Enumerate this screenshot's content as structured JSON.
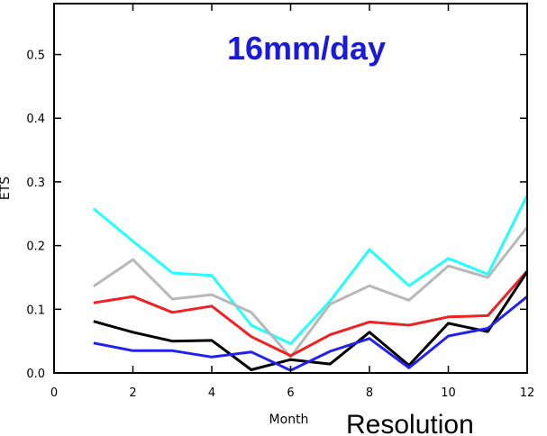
{
  "chart_data": {
    "type": "line",
    "x": [
      1,
      2,
      3,
      4,
      5,
      6,
      7,
      8,
      9,
      10,
      11,
      12
    ],
    "xlabel": "Month",
    "ylabel": "ETS",
    "xlim": [
      0,
      12
    ],
    "ylim": [
      0,
      0.58
    ],
    "xticks": [
      0,
      2,
      4,
      6,
      8,
      10,
      12
    ],
    "yticks": [
      0.0,
      0.1,
      0.2,
      0.3,
      0.4,
      0.5
    ],
    "xtick_labels": [
      "0",
      "2",
      "4",
      "6",
      "8",
      "10",
      "12"
    ],
    "ytick_labels": [
      "0.0",
      "0.1",
      "0.2",
      "0.3",
      "0.4",
      "0.5"
    ],
    "grid": false,
    "annotation": "16mm/day",
    "annotation_color": "#1a1adb",
    "corner_text": "Resolution",
    "series": [
      {
        "color": "#22ffff",
        "values": [
          0.258,
          0.207,
          0.157,
          0.153,
          0.075,
          0.046,
          0.113,
          0.194,
          0.137,
          0.18,
          0.155,
          0.279
        ]
      },
      {
        "color": "#b8b8b8",
        "values": [
          0.136,
          0.178,
          0.116,
          0.123,
          0.095,
          0.025,
          0.108,
          0.137,
          0.114,
          0.168,
          0.15,
          0.229
        ]
      },
      {
        "color": "#ee2222",
        "values": [
          0.11,
          0.12,
          0.095,
          0.105,
          0.057,
          0.027,
          0.06,
          0.08,
          0.075,
          0.088,
          0.09,
          0.16
        ]
      },
      {
        "color": "#000000",
        "values": [
          0.081,
          0.064,
          0.05,
          0.051,
          0.005,
          0.021,
          0.014,
          0.064,
          0.012,
          0.078,
          0.065,
          0.159
        ]
      },
      {
        "color": "#2222ee",
        "values": [
          0.047,
          0.035,
          0.035,
          0.025,
          0.033,
          0.004,
          0.034,
          0.054,
          0.008,
          0.058,
          0.07,
          0.12
        ]
      }
    ]
  }
}
